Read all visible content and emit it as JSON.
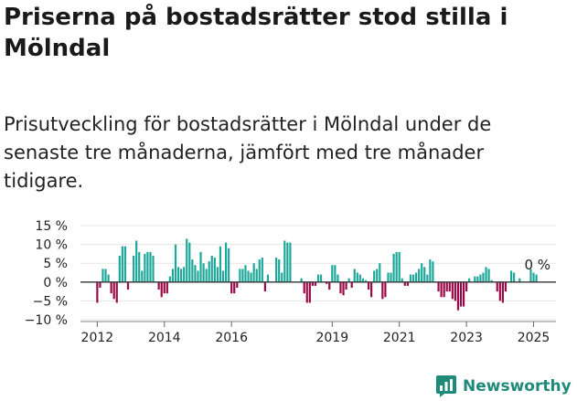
{
  "title": "Priserna på bostadsrätter stod stilla i Mölndal",
  "subtitle": "Prisutveckling för bostadsrätter i Mölndal under de senaste tre månaderna, jämfört med tre månader tidigare.",
  "brand": "Newsworthy",
  "colors": {
    "positive": "#1fa89a",
    "negative": "#9b0a48",
    "zero_line": "#333333",
    "grid": "#e6e6e6"
  },
  "chart_data": {
    "type": "bar",
    "x_start": "2012-01",
    "x_end": "2025-03",
    "xlim": [
      "2011-07",
      "2025-09"
    ],
    "ylim": [
      -10,
      15
    ],
    "y_ticks": [
      15,
      10,
      5,
      0,
      -5,
      -10
    ],
    "y_tick_labels": [
      "15 %",
      "10 %",
      "5 %",
      "0 %",
      "−5 %",
      "−10 %"
    ],
    "x_tick_labels": [
      "2012",
      "2014",
      "2016",
      "2019",
      "2021",
      "2023",
      "2025"
    ],
    "x_tick_years": [
      2012,
      2014,
      2016,
      2019,
      2021,
      2023,
      2025
    ],
    "annotation": "0 %",
    "grid": true,
    "values": [
      -5.5,
      -1.5,
      3.5,
      3.5,
      2,
      -3,
      -4.5,
      -5.5,
      7,
      9.5,
      9.5,
      -2,
      null,
      7,
      11,
      8,
      3,
      7.5,
      8,
      8,
      7,
      0,
      -2,
      -4,
      -3,
      -3,
      1.5,
      3.5,
      10,
      4,
      3.5,
      4,
      11.5,
      10.5,
      6,
      4.5,
      3,
      8,
      5,
      3.5,
      5.5,
      7,
      6.5,
      4,
      9.5,
      3,
      10.5,
      9,
      -3,
      -3,
      -1.5,
      3.5,
      3.5,
      4.5,
      3,
      2.5,
      5,
      3.5,
      6,
      6.5,
      -2.5,
      2,
      null,
      null,
      6.5,
      6,
      2.5,
      11,
      10.5,
      10.5,
      null,
      null,
      null,
      1,
      -3,
      -5.5,
      -5.5,
      -1,
      -1,
      2,
      2,
      0,
      -0.5,
      -2,
      4.5,
      4.5,
      2,
      -3,
      -3.5,
      -2,
      1,
      -1.5,
      3.5,
      2.5,
      2,
      1,
      0.5,
      -2,
      -4,
      3,
      3.5,
      5,
      -4.5,
      -4,
      2.5,
      2.5,
      7.5,
      8,
      8,
      1,
      -1,
      -1,
      2,
      2,
      2.5,
      3.5,
      5,
      4,
      2,
      6,
      5.5,
      0,
      -2.5,
      -4,
      -4,
      -2.5,
      -2.5,
      -4.5,
      -5,
      -7.5,
      -6.5,
      -6.5,
      -2.5,
      1,
      0,
      1.5,
      1.5,
      2,
      2.5,
      4,
      3.5,
      0.5,
      0,
      -2.5,
      -5,
      -5.5,
      -2.5,
      0,
      3,
      2.5,
      0,
      1,
      null,
      null,
      null,
      3.5,
      2.5,
      2,
      0,
      0,
      0
    ]
  }
}
